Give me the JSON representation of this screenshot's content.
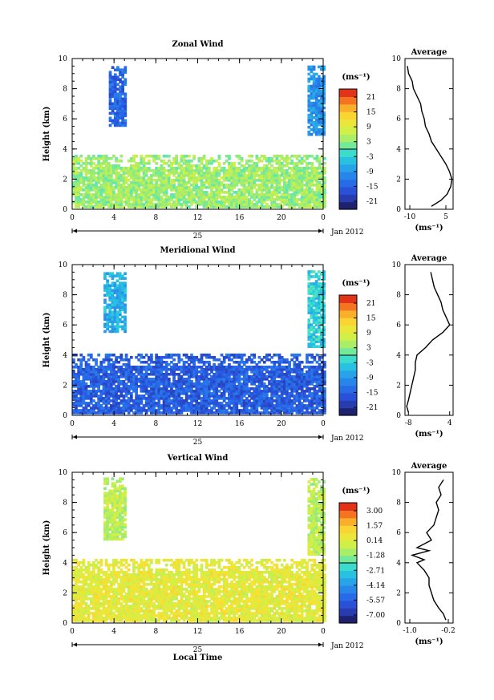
{
  "x_label": "Local Time",
  "date_label": "Jan 2012",
  "day_label": "25",
  "avg_unit": "(ms⁻¹)",
  "chart_data": [
    {
      "type": "heatmap",
      "title": "Zonal Wind",
      "xlabel": "",
      "ylabel": "Height (km)",
      "xlim": [
        0,
        24
      ],
      "ylim": [
        0,
        10
      ],
      "xticks": [
        "0",
        "4",
        "8",
        "12",
        "16",
        "20",
        "0"
      ],
      "yticks": [
        "0",
        "2",
        "4",
        "6",
        "8",
        "10"
      ],
      "colorbar": {
        "unit": "(ms⁻¹)",
        "labels": [
          "21",
          "15",
          "9",
          "3",
          "-3",
          "-9",
          "-15",
          "-21"
        ],
        "min": -24,
        "max": 24
      },
      "field": {
        "description_layers": [
          {
            "t_range": [
              3.5,
              5.0
            ],
            "z_range": [
              5.5,
              9.4
            ],
            "value": -14
          },
          {
            "t_range": [
              22.5,
              24
            ],
            "z_range": [
              4.9,
              9.4
            ],
            "value": -9
          },
          {
            "t_range": [
              0,
              24
            ],
            "z_range": [
              0.1,
              3.5
            ],
            "value": 4
          }
        ]
      },
      "average_profile": {
        "title": "Average",
        "xlim": [
          -12,
          8
        ],
        "xticks": [
          "-10",
          "5"
        ],
        "x_unit": "(ms⁻¹)",
        "z": [
          0.2,
          0.6,
          1.0,
          1.5,
          2.0,
          2.5,
          3.0,
          3.5,
          4.0,
          4.5,
          5.0,
          5.5,
          6.0,
          6.5,
          7.0,
          7.5,
          8.0,
          8.5,
          9.0,
          9.5
        ],
        "values": [
          -1.0,
          3.0,
          5.5,
          7.0,
          7.5,
          6.5,
          5.0,
          3.0,
          1.0,
          -1.0,
          -2.0,
          -3.5,
          -4.0,
          -5.0,
          -5.5,
          -7.0,
          -8.5,
          -9.0,
          -10.5,
          -11.0
        ]
      }
    },
    {
      "type": "heatmap",
      "title": "Meridional Wind",
      "xlabel": "",
      "ylabel": "Height (km)",
      "xlim": [
        0,
        24
      ],
      "ylim": [
        0,
        10
      ],
      "xticks": [
        "0",
        "4",
        "8",
        "12",
        "16",
        "20",
        "0"
      ],
      "yticks": [
        "0",
        "2",
        "4",
        "6",
        "8",
        "10"
      ],
      "colorbar": {
        "unit": "(ms⁻¹)",
        "labels": [
          "21",
          "15",
          "9",
          "3",
          "-3",
          "-9",
          "-15",
          "-21"
        ],
        "min": -24,
        "max": 24
      },
      "field": {
        "description_layers": [
          {
            "t_range": [
              3.0,
              5.0
            ],
            "z_range": [
              5.5,
              9.4
            ],
            "value": -6
          },
          {
            "t_range": [
              22.5,
              24
            ],
            "z_range": [
              4.5,
              9.5
            ],
            "value": -3
          },
          {
            "t_range": [
              0,
              24
            ],
            "z_range": [
              0.1,
              4.0
            ],
            "value": -15
          }
        ]
      },
      "average_profile": {
        "title": "Average",
        "xlim": [
          -9,
          5
        ],
        "xticks": [
          "-8",
          "4"
        ],
        "x_unit": "(ms⁻¹)",
        "z": [
          0.2,
          0.6,
          1.0,
          1.5,
          2.0,
          2.5,
          3.0,
          3.5,
          4.0,
          4.5,
          5.0,
          5.5,
          6.0,
          6.5,
          7.0,
          7.5,
          8.0,
          8.5,
          9.0,
          9.5
        ],
        "values": [
          -8.0,
          -8.5,
          -8.0,
          -7.5,
          -7.0,
          -6.5,
          -6.0,
          -6.0,
          -5.5,
          -3.0,
          -1.0,
          2.0,
          4.0,
          3.0,
          2.0,
          1.5,
          0.5,
          -0.5,
          -1.0,
          -1.5
        ]
      }
    },
    {
      "type": "heatmap",
      "title": "Vertical Wind",
      "xlabel": "Local Time",
      "ylabel": "Height (km)",
      "xlim": [
        0,
        24
      ],
      "ylim": [
        0,
        10
      ],
      "xticks": [
        "0",
        "4",
        "8",
        "12",
        "16",
        "20",
        "0"
      ],
      "yticks": [
        "0",
        "2",
        "4",
        "6",
        "8",
        "10"
      ],
      "colorbar": {
        "unit": "(ms⁻¹)",
        "labels": [
          "3.00",
          "1.57",
          "0.14",
          "-1.28",
          "-2.71",
          "-4.14",
          "-5.57",
          "-7.00"
        ],
        "min": -7.9,
        "max": 3.9
      },
      "field": {
        "description_layers": [
          {
            "t_range": [
              3.0,
              5.0
            ],
            "z_range": [
              5.5,
              9.6
            ],
            "value": -0.5
          },
          {
            "t_range": [
              22.5,
              24
            ],
            "z_range": [
              4.5,
              9.5
            ],
            "value": -0.5
          },
          {
            "t_range": [
              0,
              24
            ],
            "z_range": [
              0.1,
              4.2
            ],
            "value": 0.4
          }
        ]
      },
      "average_profile": {
        "title": "Average",
        "xlim": [
          -1.1,
          -0.1
        ],
        "xticks": [
          "-1.0",
          "-0.2"
        ],
        "x_unit": "(ms⁻¹)",
        "z": [
          0.2,
          0.6,
          1.0,
          1.5,
          2.0,
          2.5,
          3.0,
          3.5,
          4.0,
          4.2,
          4.5,
          4.8,
          5.0,
          5.5,
          6.0,
          6.5,
          7.0,
          7.5,
          8.0,
          8.5,
          9.0,
          9.5
        ],
        "values": [
          -0.25,
          -0.3,
          -0.4,
          -0.5,
          -0.55,
          -0.6,
          -0.6,
          -0.7,
          -0.85,
          -0.7,
          -0.95,
          -0.6,
          -0.85,
          -0.55,
          -0.65,
          -0.5,
          -0.45,
          -0.4,
          -0.45,
          -0.35,
          -0.4,
          -0.3
        ]
      }
    }
  ]
}
